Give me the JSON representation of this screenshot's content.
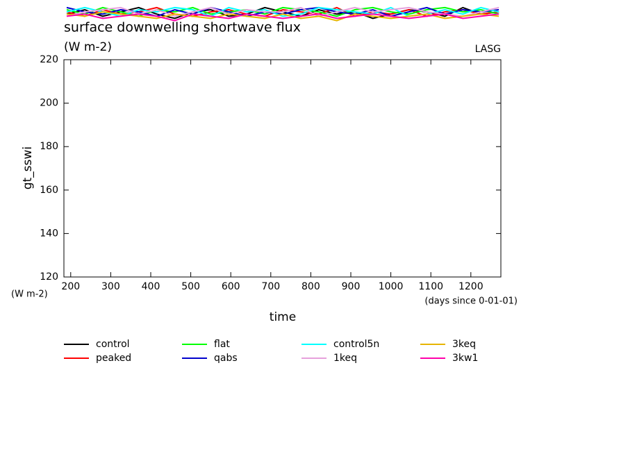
{
  "chart_data": {
    "type": "line",
    "title": "surface downwelling shortwave flux",
    "subtitle": "(W m-2)",
    "annotation": "LASG",
    "y_label": "gt_sswi",
    "y_units": "(W m-2)",
    "x_units": "(days since 0-01-01)",
    "x_label": "time",
    "xlim": [
      183,
      1275
    ],
    "ylim": [
      120,
      220
    ],
    "xticks": [
      200,
      300,
      400,
      500,
      600,
      700,
      800,
      900,
      1000,
      1100,
      1200
    ],
    "yticks": [
      120,
      140,
      160,
      180,
      200,
      220
    ],
    "x": [
      190,
      235,
      280,
      325,
      370,
      415,
      460,
      505,
      550,
      595,
      640,
      685,
      730,
      775,
      820,
      865,
      910,
      955,
      1000,
      1045,
      1090,
      1135,
      1180,
      1225,
      1270
    ],
    "series": [
      {
        "name": "control",
        "color": "#000000",
        "values": [
          241,
          243,
          240,
          242,
          244,
          241,
          239,
          242,
          243,
          240,
          241,
          244,
          242,
          240,
          243,
          241,
          242,
          239,
          241,
          243,
          242,
          240,
          244,
          241,
          242
        ]
      },
      {
        "name": "peaked",
        "color": "#ff0000",
        "values": [
          242,
          240,
          243,
          241,
          242,
          244,
          241,
          240,
          242,
          243,
          241,
          240,
          243,
          242,
          241,
          244,
          240,
          242,
          241,
          243,
          240,
          242,
          243,
          241,
          242
        ]
      },
      {
        "name": "flat",
        "color": "#00ff00",
        "values": [
          243,
          241,
          244,
          242,
          240,
          243,
          242,
          244,
          241,
          242,
          243,
          241,
          244,
          243,
          242,
          240,
          243,
          244,
          242,
          241,
          243,
          244,
          242,
          243,
          241
        ]
      },
      {
        "name": "qabs",
        "color": "#0000cc",
        "values": [
          244,
          242,
          241,
          243,
          242,
          240,
          243,
          241,
          244,
          242,
          240,
          242,
          241,
          243,
          244,
          242,
          241,
          243,
          240,
          242,
          244,
          241,
          243,
          242,
          243
        ]
      },
      {
        "name": "control5n",
        "color": "#00ffff",
        "values": [
          242,
          244,
          242,
          240,
          243,
          242,
          244,
          243,
          240,
          244,
          242,
          243,
          240,
          241,
          244,
          243,
          242,
          241,
          244,
          240,
          241,
          243,
          241,
          244,
          242
        ]
      },
      {
        "name": "1keq",
        "color": "#e6a0dc",
        "values": [
          240,
          242,
          243,
          244,
          241,
          243,
          240,
          242,
          244,
          241,
          243,
          242,
          242,
          244,
          240,
          242,
          244,
          242,
          243,
          244,
          242,
          241,
          240,
          242,
          244
        ]
      },
      {
        "name": "3keq",
        "color": "#e6b400",
        "values": [
          241,
          240,
          242,
          241,
          240,
          239,
          241,
          240,
          239,
          241,
          240,
          239,
          241,
          239,
          240,
          238,
          241,
          240,
          239,
          240,
          241,
          239,
          240,
          241,
          240
        ]
      },
      {
        "name": "3kw1",
        "color": "#ff00aa",
        "values": [
          240,
          241,
          239,
          240,
          241,
          240,
          238,
          241,
          240,
          239,
          241,
          240,
          239,
          240,
          241,
          239,
          240,
          241,
          240,
          239,
          240,
          241,
          239,
          240,
          241
        ]
      }
    ]
  }
}
